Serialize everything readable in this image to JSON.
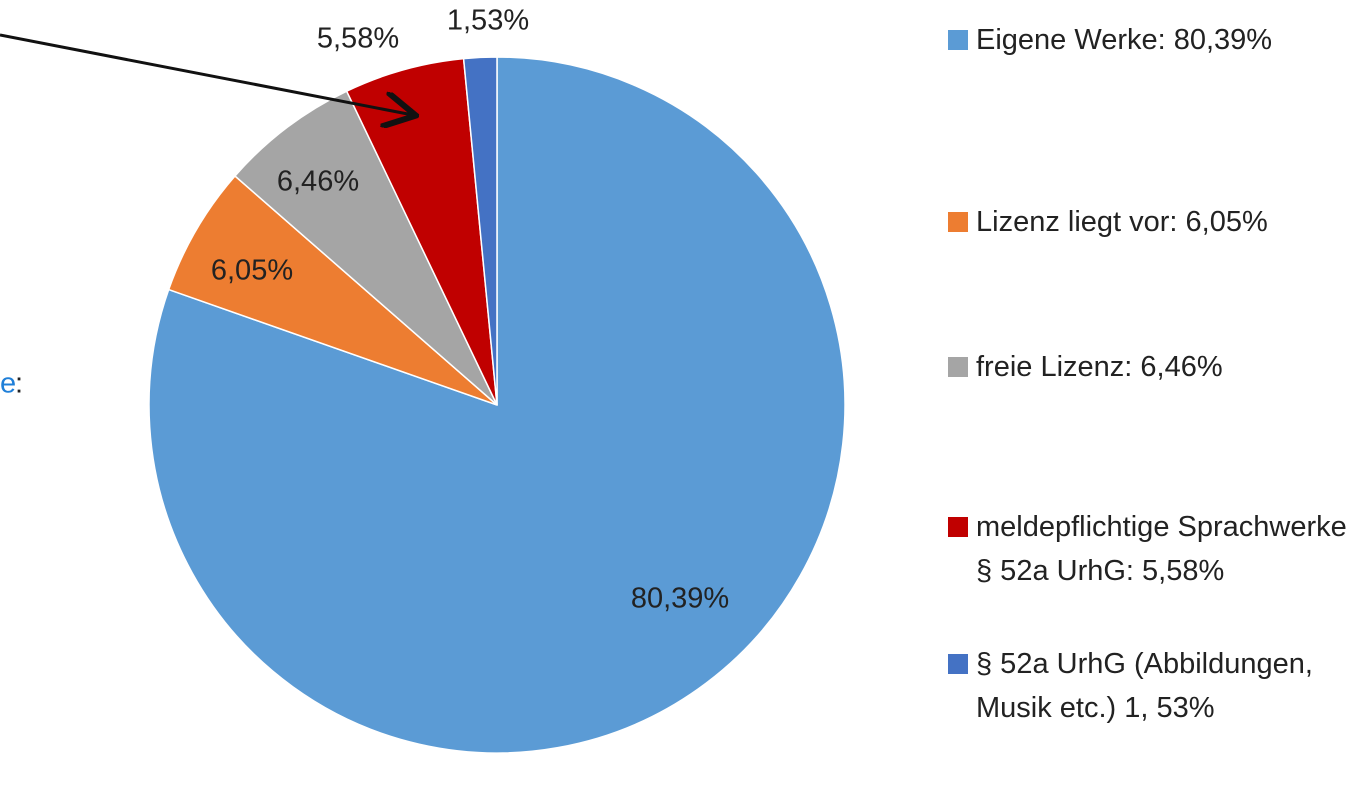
{
  "chart_data": {
    "type": "pie",
    "categories": [
      "Eigene Werke: 80,39%",
      "Lizenz liegt vor: 6,05%",
      "freie Lizenz: 6,46%",
      "meldepflichtige Sprachwerke § 52a UrhG: 5,58%",
      "§ 52a UrhG (Abbildungen, Musik etc.) 1, 53%"
    ],
    "values": [
      80.39,
      6.05,
      6.46,
      5.58,
      1.53
    ],
    "value_labels": [
      "80,39%",
      "6,05%",
      "6,46%",
      "5,58%",
      "1,53%"
    ],
    "colors": [
      "#5b9bd5",
      "#ed7d31",
      "#a5a5a5",
      "#c00000",
      "#4472c4"
    ],
    "annotations": [
      "e",
      ":"
    ],
    "legend": "right"
  }
}
